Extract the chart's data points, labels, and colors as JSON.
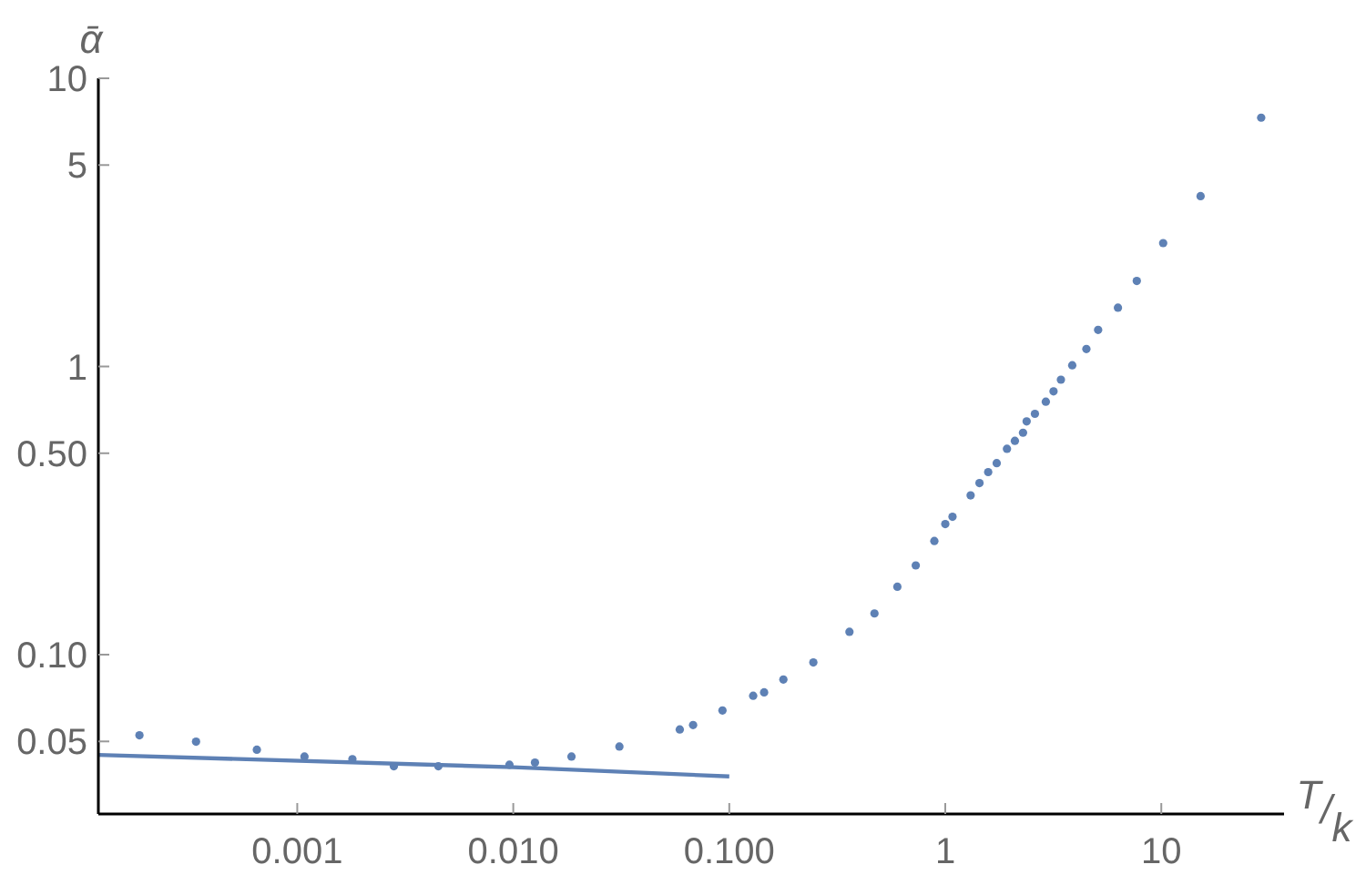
{
  "chart_data": {
    "type": "scatter",
    "xlabel": "T/k",
    "ylabel": "ᾱ",
    "log": "xy",
    "grid": false,
    "xlim": [
      0.00012,
      37
    ],
    "xticks": [
      {
        "value": 0.001,
        "label": "0.001"
      },
      {
        "value": 0.01,
        "label": "0.010"
      },
      {
        "value": 0.1,
        "label": "0.100"
      },
      1,
      10
    ],
    "ylim": [
      0.028,
      10
    ],
    "yticks": [
      {
        "value": 0.05,
        "label": "0.05"
      },
      {
        "value": 0.1,
        "label": "0.10"
      },
      {
        "value": 0.5,
        "label": "0.50"
      },
      1,
      5,
      10
    ],
    "series": [
      {
        "marker": "circle",
        "color": "#5e81b5",
        "x": [
          0.000186,
          0.00034,
          0.00065,
          0.00108,
          0.0018,
          0.0028,
          0.0045,
          0.0096,
          0.0126,
          0.0186,
          0.031,
          0.059,
          0.068,
          0.093,
          0.129,
          0.145,
          0.178,
          0.245,
          0.36,
          0.47,
          0.6,
          0.73,
          0.89,
          1.0,
          1.08,
          1.31,
          1.44,
          1.58,
          1.73,
          1.93,
          2.1,
          2.29,
          2.38,
          2.6,
          2.92,
          3.17,
          3.43,
          3.87,
          4.5,
          5.1,
          6.3,
          7.7,
          10.2,
          15.2,
          29
        ],
        "values": [
          0.0525,
          0.0499,
          0.0468,
          0.0443,
          0.0434,
          0.041,
          0.041,
          0.0415,
          0.0422,
          0.0443,
          0.048,
          0.055,
          0.057,
          0.064,
          0.072,
          0.074,
          0.082,
          0.094,
          0.12,
          0.139,
          0.172,
          0.204,
          0.248,
          0.284,
          0.301,
          0.357,
          0.394,
          0.43,
          0.462,
          0.518,
          0.552,
          0.589,
          0.645,
          0.685,
          0.755,
          0.82,
          0.9,
          1.01,
          1.15,
          1.34,
          1.6,
          1.98,
          2.68,
          3.9,
          7.3
        ]
      },
      {
        "type": "line",
        "color": "#5e81b5",
        "x": [
          0.00012,
          0.01,
          0.1
        ],
        "values": [
          0.0449,
          0.0407,
          0.0378
        ]
      }
    ]
  }
}
